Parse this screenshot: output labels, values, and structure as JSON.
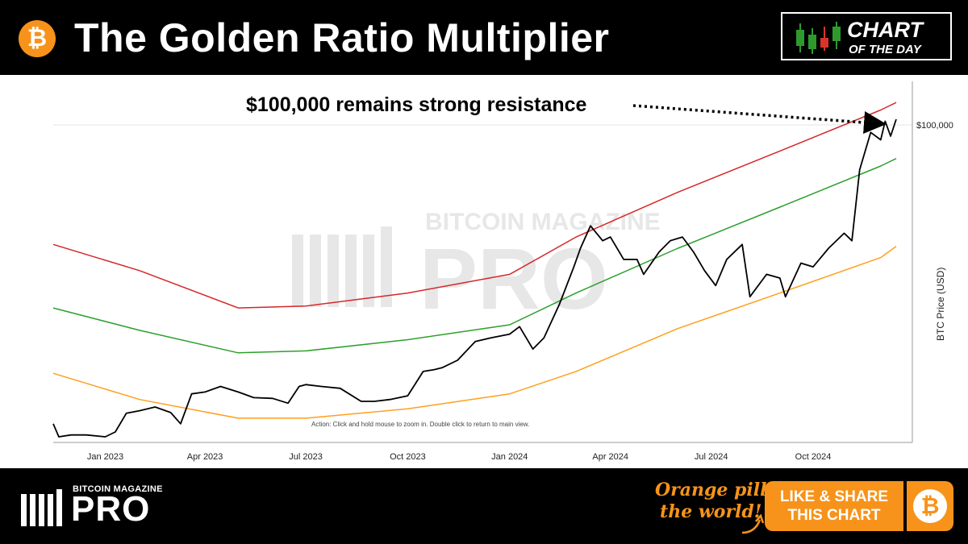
{
  "header": {
    "title": "The Golden Ratio Multiplier",
    "badge_line1": "CHART",
    "badge_line2": "OF THE DAY"
  },
  "watermark": {
    "line1": "BITCOIN MAGAZINE",
    "line2": "PRO"
  },
  "footer": {
    "brand_small": "BITCOIN MAGAZINE",
    "brand_big": "PRO",
    "slogan_line1": "Orange pill",
    "slogan_line2": "the world!",
    "cta_line1": "LIKE & SHARE",
    "cta_line2": "THIS CHART"
  },
  "chart_data": {
    "type": "line",
    "title": "",
    "ylabel": "BTC Price (USD)",
    "xlabel": "",
    "x_ticks": [
      "Jan 2023",
      "Apr 2023",
      "Jul 2023",
      "Oct 2023",
      "Jan 2024",
      "Apr 2024",
      "Jul 2024",
      "Oct 2024"
    ],
    "y_tick_label": "$100,000",
    "annotation": "$100,000 remains strong resistance",
    "hint": "Action: Click and hold mouse to zoom in.  Double click to return to main view.",
    "series": [
      {
        "color": "#d62728",
        "x": [
          "2022-11-15",
          "2023-02-01",
          "2023-05-01",
          "2023-07-01",
          "2023-10-01",
          "2024-01-01",
          "2024-03-01",
          "2024-06-01",
          "2024-09-01",
          "2024-12-01",
          "2024-12-15"
        ],
        "y": [
          68000,
          61000,
          51000,
          51500,
          55000,
          60000,
          70000,
          82000,
          93000,
          104000,
          106000
        ]
      },
      {
        "color": "#2ca02c",
        "x": [
          "2022-11-15",
          "2023-02-01",
          "2023-05-01",
          "2023-07-01",
          "2023-10-01",
          "2024-01-01",
          "2024-03-01",
          "2024-06-01",
          "2024-09-01",
          "2024-12-01",
          "2024-12-15"
        ],
        "y": [
          51000,
          45000,
          39000,
          39500,
          42500,
          46500,
          55000,
          67000,
          78000,
          89000,
          91000
        ]
      },
      {
        "color": "#ff9f1c",
        "x": [
          "2022-11-15",
          "2023-02-01",
          "2023-05-01",
          "2023-07-01",
          "2023-10-01",
          "2024-01-01",
          "2024-03-01",
          "2024-06-01",
          "2024-09-01",
          "2024-12-01",
          "2024-12-15"
        ],
        "y": [
          33500,
          26500,
          21500,
          21500,
          24000,
          28000,
          34000,
          45500,
          55000,
          64500,
          67500
        ]
      },
      {
        "color": "#000000",
        "x": [
          "2022-11-15",
          "2022-11-20",
          "2022-12-01",
          "2022-12-15",
          "2023-01-01",
          "2023-01-10",
          "2023-01-20",
          "2023-02-01",
          "2023-02-15",
          "2023-03-01",
          "2023-03-10",
          "2023-03-20",
          "2023-04-01",
          "2023-04-15",
          "2023-05-01",
          "2023-05-15",
          "2023-06-01",
          "2023-06-15",
          "2023-06-25",
          "2023-07-01",
          "2023-07-15",
          "2023-08-01",
          "2023-08-20",
          "2023-09-01",
          "2023-09-15",
          "2023-10-01",
          "2023-10-15",
          "2023-10-25",
          "2023-11-01",
          "2023-11-15",
          "2023-12-01",
          "2023-12-15",
          "2024-01-01",
          "2024-01-10",
          "2024-01-22",
          "2024-02-01",
          "2024-02-15",
          "2024-02-28",
          "2024-03-05",
          "2024-03-14",
          "2024-03-25",
          "2024-04-01",
          "2024-04-13",
          "2024-04-25",
          "2024-05-01",
          "2024-05-15",
          "2024-05-25",
          "2024-06-05",
          "2024-06-15",
          "2024-06-25",
          "2024-07-05",
          "2024-07-15",
          "2024-07-29",
          "2024-08-05",
          "2024-08-20",
          "2024-09-01",
          "2024-09-06",
          "2024-09-20",
          "2024-10-01",
          "2024-10-15",
          "2024-10-29",
          "2024-11-05",
          "2024-11-12",
          "2024-11-22",
          "2024-12-01",
          "2024-12-05",
          "2024-12-10",
          "2024-12-15"
        ],
        "y": [
          20000,
          16500,
          17000,
          17000,
          16500,
          17800,
          22800,
          23500,
          24500,
          23000,
          20000,
          28000,
          28500,
          30000,
          28500,
          27000,
          26800,
          25500,
          30000,
          30500,
          30000,
          29500,
          26000,
          26000,
          26500,
          27500,
          34000,
          34500,
          35000,
          37000,
          42000,
          43000,
          44000,
          46000,
          40000,
          43000,
          52000,
          62000,
          67000,
          73000,
          69000,
          70000,
          64000,
          64000,
          60000,
          66000,
          69000,
          70000,
          66000,
          61000,
          57000,
          64000,
          68000,
          54000,
          60000,
          59000,
          54000,
          63000,
          62000,
          67000,
          71000,
          69000,
          88000,
          98000,
          96000,
          101000,
          97000,
          101500
        ]
      }
    ]
  }
}
